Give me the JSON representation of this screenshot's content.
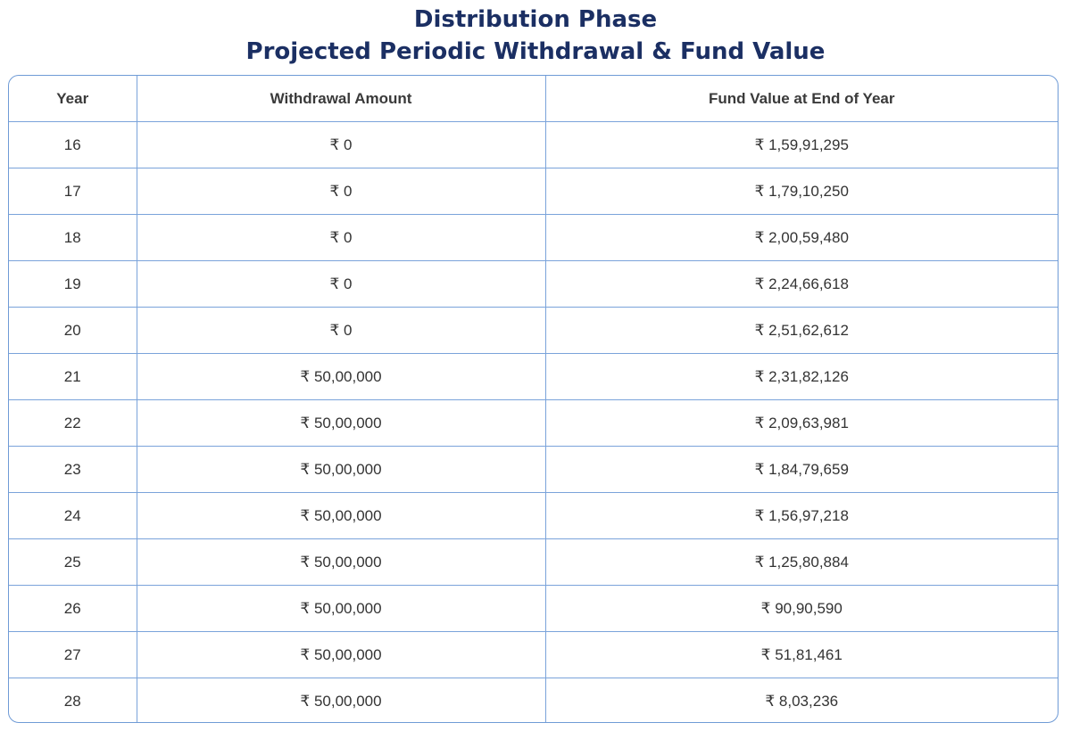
{
  "title": {
    "line1": "Distribution Phase",
    "line2": "Projected Periodic Withdrawal & Fund Value"
  },
  "table": {
    "headers": [
      "Year",
      "Withdrawal Amount",
      "Fund Value at End of Year"
    ],
    "rows": [
      [
        "16",
        "₹ 0",
        "₹ 1,59,91,295"
      ],
      [
        "17",
        "₹ 0",
        "₹ 1,79,10,250"
      ],
      [
        "18",
        "₹ 0",
        "₹ 2,00,59,480"
      ],
      [
        "19",
        "₹ 0",
        "₹ 2,24,66,618"
      ],
      [
        "20",
        "₹ 0",
        "₹ 2,51,62,612"
      ],
      [
        "21",
        "₹ 50,00,000",
        "₹ 2,31,82,126"
      ],
      [
        "22",
        "₹ 50,00,000",
        "₹ 2,09,63,981"
      ],
      [
        "23",
        "₹ 50,00,000",
        "₹ 1,84,79,659"
      ],
      [
        "24",
        "₹ 50,00,000",
        "₹ 1,56,97,218"
      ],
      [
        "25",
        "₹ 50,00,000",
        "₹ 1,25,80,884"
      ],
      [
        "26",
        "₹ 50,00,000",
        "₹ 90,90,590"
      ],
      [
        "27",
        "₹ 50,00,000",
        "₹ 51,81,461"
      ],
      [
        "28",
        "₹ 50,00,000",
        "₹ 8,03,236"
      ]
    ]
  },
  "colors": {
    "title": "#1b2f63",
    "border": "#7aa3da",
    "text": "#333333"
  }
}
